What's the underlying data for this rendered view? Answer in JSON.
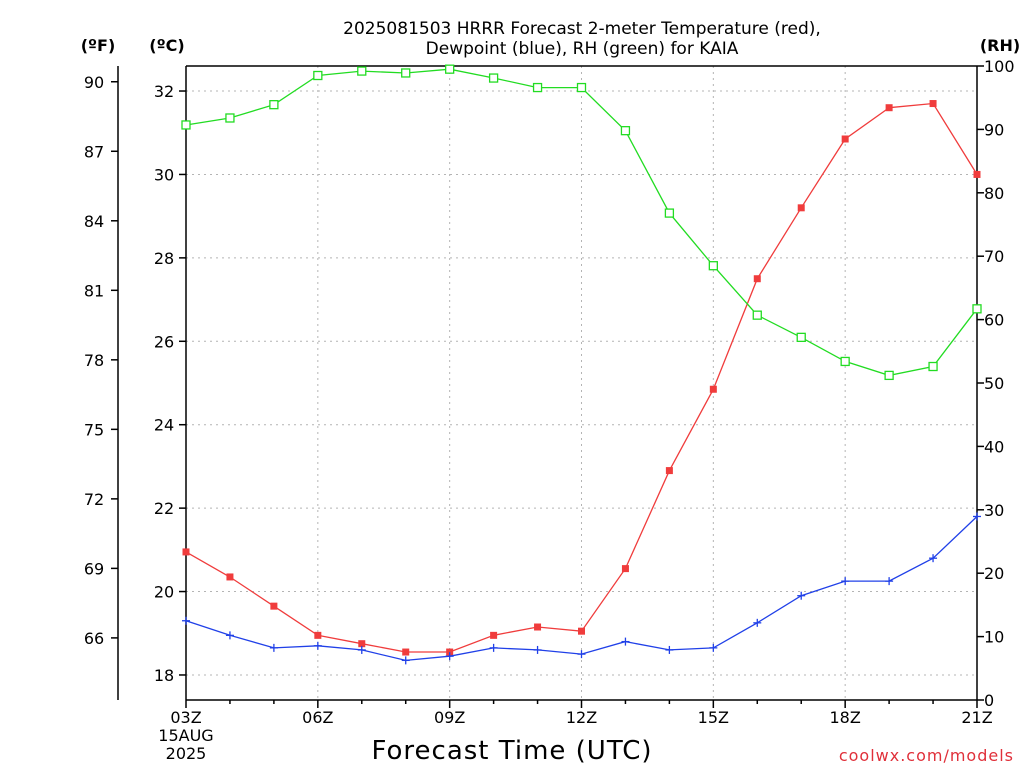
{
  "chart_data": {
    "type": "line",
    "title": "2025081503 HRRR Forecast 2-meter Temperature (red), Dewpoint (blue), RH (green) for KAIA",
    "title_lines": [
      "2025081503 HRRR Forecast 2-meter Temperature (red),",
      "Dewpoint (blue), RH (green) for KAIA"
    ],
    "xlabel": "Forecast Time (UTC)",
    "x": [
      "03Z",
      "04Z",
      "05Z",
      "06Z",
      "07Z",
      "08Z",
      "09Z",
      "10Z",
      "11Z",
      "12Z",
      "13Z",
      "14Z",
      "15Z",
      "16Z",
      "17Z",
      "18Z",
      "19Z",
      "20Z",
      "21Z"
    ],
    "x_tick_labels": [
      "03Z",
      "06Z",
      "09Z",
      "12Z",
      "15Z",
      "18Z",
      "21Z"
    ],
    "x_date_label": [
      "15AUG",
      "2025"
    ],
    "axes": {
      "left_f": {
        "label": "(ºF)",
        "ticks": [
          "66",
          "69",
          "72",
          "75",
          "78",
          "81",
          "84",
          "87",
          "90"
        ]
      },
      "left_c": {
        "label": "(ºC)",
        "ticks": [
          "18",
          "20",
          "22",
          "24",
          "26",
          "28",
          "30",
          "32"
        ],
        "ylim": [
          17.4,
          32.6
        ]
      },
      "right_rh": {
        "label": "(RH)",
        "ticks": [
          "0",
          "10",
          "20",
          "30",
          "40",
          "50",
          "60",
          "70",
          "80",
          "90",
          "100"
        ],
        "ylim": [
          0,
          100
        ]
      }
    },
    "grid": true,
    "series": [
      {
        "name": "Temperature",
        "axis": "left_c",
        "color": "#f03c3c",
        "marker": "filled-square",
        "values": [
          20.95,
          20.35,
          19.65,
          18.95,
          18.75,
          18.55,
          18.55,
          18.95,
          19.15,
          19.05,
          20.55,
          22.9,
          24.85,
          27.5,
          29.2,
          30.85,
          31.6,
          31.7,
          30.0
        ]
      },
      {
        "name": "Dewpoint",
        "axis": "left_c",
        "color": "#2040e8",
        "marker": "plus",
        "values": [
          19.3,
          18.95,
          18.65,
          18.7,
          18.6,
          18.35,
          18.45,
          18.65,
          18.6,
          18.5,
          18.8,
          18.6,
          18.65,
          19.25,
          19.9,
          20.25,
          20.25,
          20.8,
          21.8
        ]
      },
      {
        "name": "RH",
        "axis": "right_rh",
        "color": "#22dc22",
        "marker": "open-square",
        "values": [
          90.7,
          91.8,
          93.9,
          98.5,
          99.2,
          98.9,
          99.5,
          98.1,
          96.6,
          96.6,
          89.8,
          76.8,
          68.5,
          60.7,
          57.2,
          53.4,
          51.2,
          52.6,
          61.7
        ]
      }
    ]
  },
  "credit": "coolwx.com/models"
}
